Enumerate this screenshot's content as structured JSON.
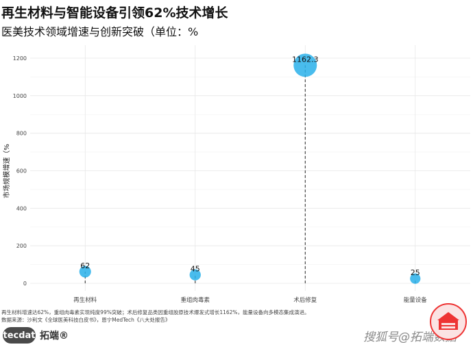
{
  "header": {
    "title": "再生材料与智能设备引领62%技术增长",
    "subtitle": "医美技术领域增速与创新突破（单位：%"
  },
  "chart_data": {
    "type": "scatter",
    "title": "再生材料与智能设备引领62%技术增长",
    "subtitle": "医美技术领域增速与创新突破（单位：%",
    "xlabel": "",
    "ylabel": "市场规模增速（%",
    "categories": [
      "再生材料",
      "重组肉毒素",
      "术后修复",
      "能量设备"
    ],
    "values": [
      62,
      45,
      1162.3,
      25
    ],
    "data_labels": [
      "62",
      "45",
      "1162.3",
      "25"
    ],
    "ylim": [
      0,
      1250
    ],
    "yticks": [
      0,
      200,
      400,
      600,
      800,
      1000,
      1200
    ],
    "ytick_labels": [
      "0",
      "200",
      "400",
      "600",
      "800",
      "1000",
      "1200"
    ],
    "grid": true,
    "point_color": "#29b0ea"
  },
  "footer": {
    "caption_line1": "再生材料增速达62%，重组肉毒素实现纯度99%突破；术后修复品类因重组胶原技术爆发式增长1162%，能量设备向多模态集成演进。",
    "caption_line2": "数据来源：沙利文《全球医美科技白皮书》，恩宁MedTech《八大处报告》",
    "logo_circle": "tecdat",
    "logo_text": "拓端®",
    "watermark": "搜狐号@拓端数据"
  }
}
